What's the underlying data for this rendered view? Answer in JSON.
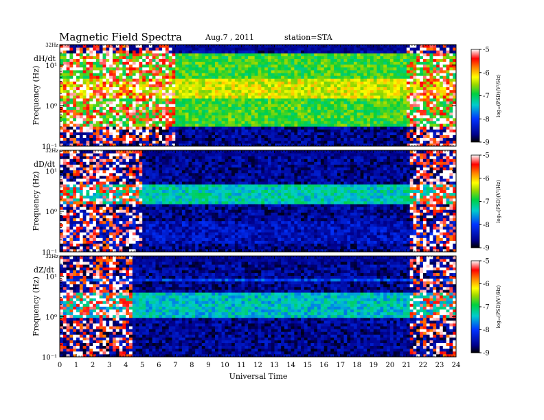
{
  "header": {
    "title": "Magnetic  Field  Spectra",
    "date": "Aug.7  , 2011",
    "station": "station=STA"
  },
  "chart_data": [
    {
      "type": "heatmap",
      "panel_label": "dH/dt",
      "ylabel": "Frequency  (Hz)",
      "xlabel": "",
      "top_tick_label": "32Hz",
      "y_ticks": [
        "10⁻¹",
        "10⁰",
        "10¹"
      ],
      "x_ticks": [
        "0",
        "1",
        "2",
        "3",
        "4",
        "5",
        "6",
        "7",
        "8",
        "9",
        "10",
        "11",
        "12",
        "13",
        "14",
        "15",
        "16",
        "17",
        "18",
        "19",
        "20",
        "21",
        "22",
        "23",
        "24"
      ],
      "xlim": [
        0,
        24
      ],
      "ylim_hz": [
        0.1,
        32
      ],
      "yscale": "log",
      "colorbar": {
        "label": "log₁₀(PSD)(V²/Hz)",
        "range": [
          -9,
          -5
        ],
        "ticks": [
          "-5",
          "-6",
          "-7",
          "-8",
          "-9"
        ]
      },
      "noisy_intervals_ut": [
        [
          0,
          7
        ],
        [
          21.1,
          24
        ]
      ],
      "signal_bands": [
        {
          "from_hz": 0.3,
          "to_hz": 20,
          "level": -6.8
        },
        {
          "from_hz": 1.5,
          "to_hz": 5,
          "level": -6.3
        }
      ]
    },
    {
      "type": "heatmap",
      "panel_label": "dD/dt",
      "ylabel": "Frequency  (Hz)",
      "xlabel": "",
      "top_tick_label": "32Hz",
      "y_ticks": [
        "10⁻¹",
        "10⁰",
        "10¹"
      ],
      "x_ticks": [
        "0",
        "1",
        "2",
        "3",
        "4",
        "5",
        "6",
        "7",
        "8",
        "9",
        "10",
        "11",
        "12",
        "13",
        "14",
        "15",
        "16",
        "17",
        "18",
        "19",
        "20",
        "21",
        "22",
        "23",
        "24"
      ],
      "xlim": [
        0,
        24
      ],
      "ylim_hz": [
        0.1,
        32
      ],
      "yscale": "log",
      "colorbar": {
        "label": "log₁₀(PSD)(V²/Hz)",
        "range": [
          -9,
          -5
        ],
        "ticks": [
          "-5",
          "-6",
          "-7",
          "-8",
          "-9"
        ]
      },
      "noisy_intervals_ut": [
        [
          0,
          5
        ],
        [
          21.3,
          24
        ]
      ],
      "signal_bands": [
        {
          "from_hz": 1.5,
          "to_hz": 5,
          "level": -7.3
        },
        {
          "from_hz": 0.15,
          "to_hz": 0.6,
          "level": -8.4
        }
      ]
    },
    {
      "type": "heatmap",
      "panel_label": "dZ/dt",
      "ylabel": "Frequency  (Hz)",
      "xlabel": "Universal Time",
      "top_tick_label": "32Hz",
      "y_ticks": [
        "10⁻¹",
        "10⁰",
        "10¹"
      ],
      "x_ticks": [
        "0",
        "1",
        "2",
        "3",
        "4",
        "5",
        "6",
        "7",
        "8",
        "9",
        "10",
        "11",
        "12",
        "13",
        "14",
        "15",
        "16",
        "17",
        "18",
        "19",
        "20",
        "21",
        "22",
        "23",
        "24"
      ],
      "xlim": [
        0,
        24
      ],
      "ylim_hz": [
        0.1,
        32
      ],
      "yscale": "log",
      "colorbar": {
        "label": "log₁₀(PSD)(V²/Hz)",
        "range": [
          -9,
          -5
        ],
        "ticks": [
          "-5",
          "-6",
          "-7",
          "-8",
          "-9"
        ]
      },
      "noisy_intervals_ut": [
        [
          0,
          4.3
        ],
        [
          21.3,
          24
        ]
      ],
      "signal_bands": [
        {
          "from_hz": 1,
          "to_hz": 4,
          "level": -7.4
        },
        {
          "from_hz": 8,
          "to_hz": 8.5,
          "level": -8.0
        }
      ]
    }
  ]
}
